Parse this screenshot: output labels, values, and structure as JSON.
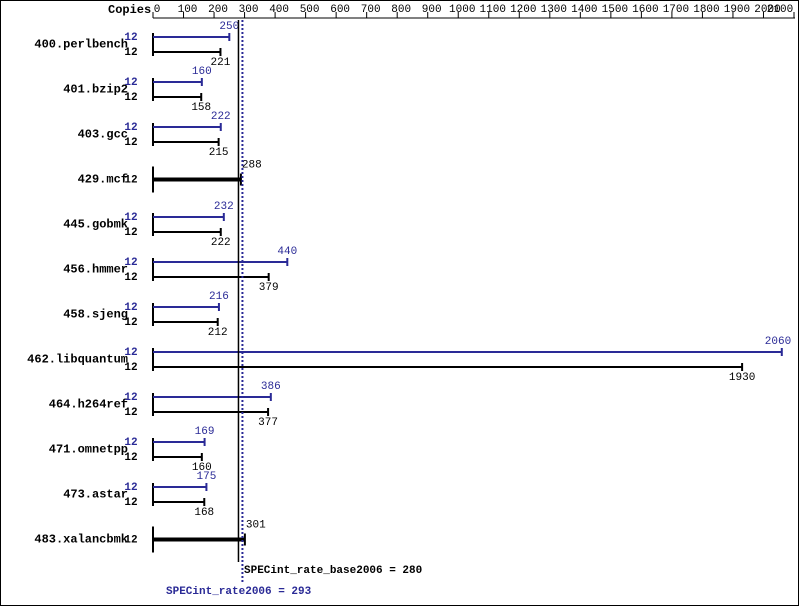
{
  "chart_data": {
    "type": "bar",
    "orientation": "horizontal",
    "copies_label": "Copies",
    "categories": [
      "400.perlbench",
      "401.bzip2",
      "403.gcc",
      "429.mcf",
      "445.gobmk",
      "456.hmmer",
      "458.sjeng",
      "462.libquantum",
      "464.h264ref",
      "471.omnetpp",
      "473.astar",
      "483.xalancbmk"
    ],
    "series": [
      {
        "color": "#2a2a96",
        "copies": [
          12,
          12,
          12,
          null,
          12,
          12,
          12,
          12,
          12,
          12,
          12,
          null
        ],
        "values": [
          250,
          160,
          222,
          null,
          232,
          440,
          216,
          2060,
          386,
          169,
          175,
          null
        ]
      },
      {
        "color": "#000000",
        "copies": [
          12,
          12,
          12,
          12,
          12,
          12,
          12,
          12,
          12,
          12,
          12,
          12
        ],
        "values": [
          221,
          158,
          215,
          288,
          222,
          379,
          212,
          1930,
          377,
          160,
          168,
          301
        ]
      }
    ],
    "xlim": [
      0,
      2100
    ],
    "xticks": [
      0,
      100,
      200,
      300,
      400,
      500,
      600,
      700,
      800,
      900,
      1000,
      1100,
      1200,
      1300,
      1400,
      1500,
      1600,
      1700,
      1800,
      1900,
      2000,
      2100
    ],
    "reference_lines": [
      {
        "label": "SPECint_rate_base2006 = 280",
        "value": 280,
        "color": "#000000",
        "style": "solid"
      },
      {
        "label": "SPECint_rate2006 = 293",
        "value": 293,
        "color": "#2a2a96",
        "style": "dotted"
      }
    ]
  }
}
